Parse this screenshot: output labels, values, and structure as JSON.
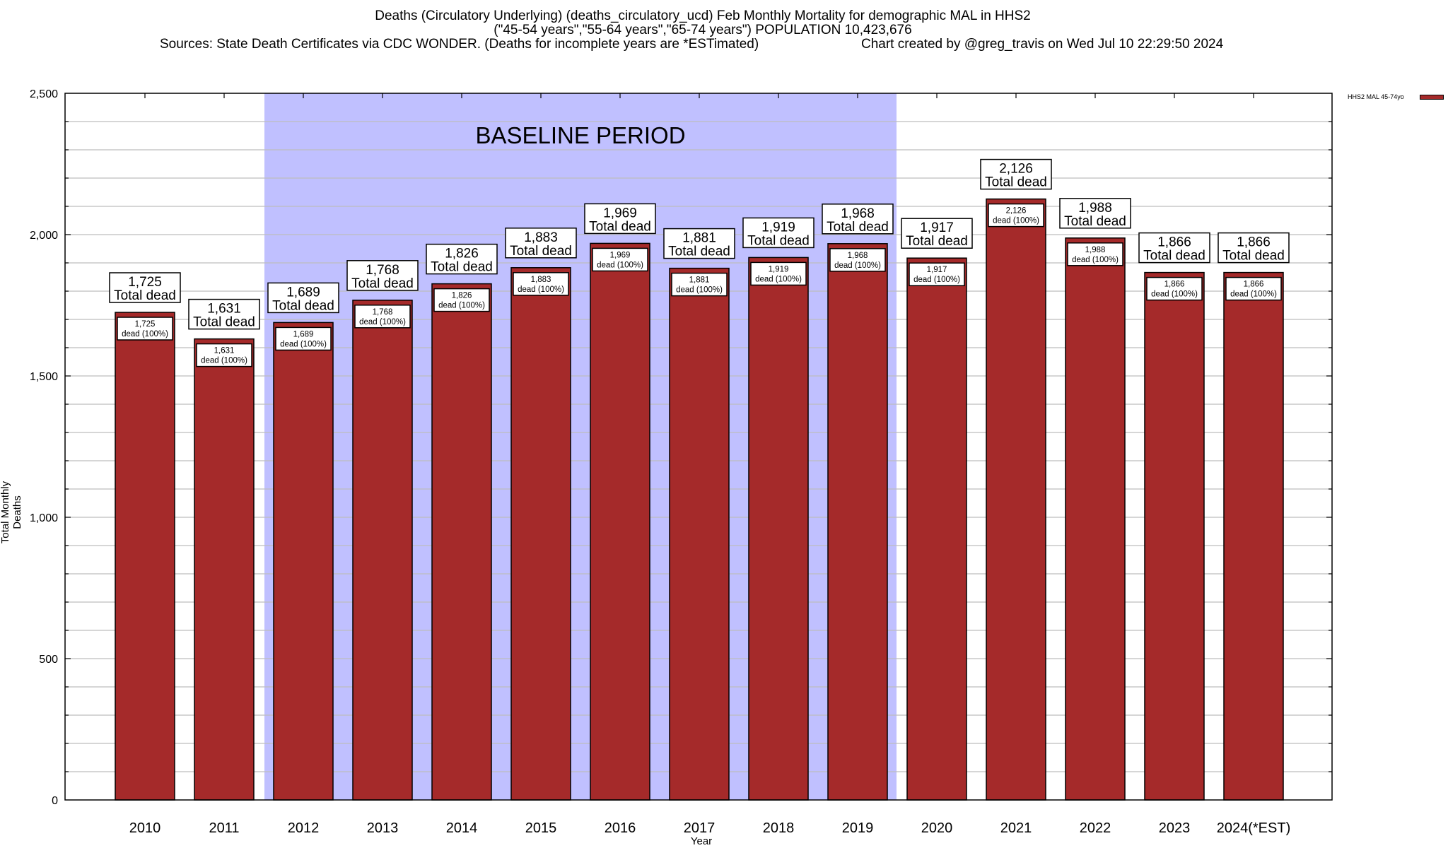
{
  "header": {
    "title_line1": "Deaths (Circulatory Underlying) (deaths_circulatory_ucd) Feb Monthly Mortality for demographic MAL in HHS2",
    "title_line2": "(\"45-54 years\",\"55-64 years\",\"65-74 years\") POPULATION 10,423,676",
    "sources": "Sources: State Death Certificates via CDC WONDER. (Deaths for incomplete years are *ESTimated)",
    "credit": "Chart created by @greg_travis on Wed Jul 10 22:29:50 2024"
  },
  "chart_data": {
    "type": "bar",
    "title": "Deaths (Circulatory Underlying) (deaths_circulatory_ucd) Feb Monthly Mortality for demographic MAL in HHS2",
    "xlabel": "Year",
    "ylabel": "Total Monthly Deaths",
    "ylim": [
      0,
      2500
    ],
    "yticks": [
      0,
      500,
      1000,
      1500,
      2000,
      2500
    ],
    "ytick_labels": [
      "0",
      "500",
      "1,000",
      "1,500",
      "2,000",
      "2,500"
    ],
    "minor_grid_step": 100,
    "grid": true,
    "categories": [
      "2010",
      "2011",
      "2012",
      "2013",
      "2014",
      "2015",
      "2016",
      "2017",
      "2018",
      "2019",
      "2020",
      "2021",
      "2022",
      "2023",
      "2024(*EST)"
    ],
    "series": [
      {
        "name": "HHS2 MAL 45-74yo",
        "color": "#a52a2a",
        "values": [
          1725,
          1631,
          1689,
          1768,
          1826,
          1883,
          1969,
          1881,
          1919,
          1968,
          1917,
          2126,
          1988,
          1866,
          1866
        ],
        "value_labels": [
          "1,725",
          "1,631",
          "1,689",
          "1,768",
          "1,826",
          "1,883",
          "1,969",
          "1,881",
          "1,919",
          "1,968",
          "1,917",
          "2,126",
          "1,988",
          "1,866",
          "1,866"
        ],
        "inner_label_suffix": "dead (100%)"
      }
    ],
    "total_label_suffix": "Total dead",
    "annotation": {
      "text": "BASELINE PERIOD",
      "from_category": "2012",
      "to_category": "2019",
      "color": "#c0c0ff"
    },
    "legend": {
      "position": "top-right",
      "entries": [
        "HHS2 MAL 45-74yo"
      ]
    }
  }
}
